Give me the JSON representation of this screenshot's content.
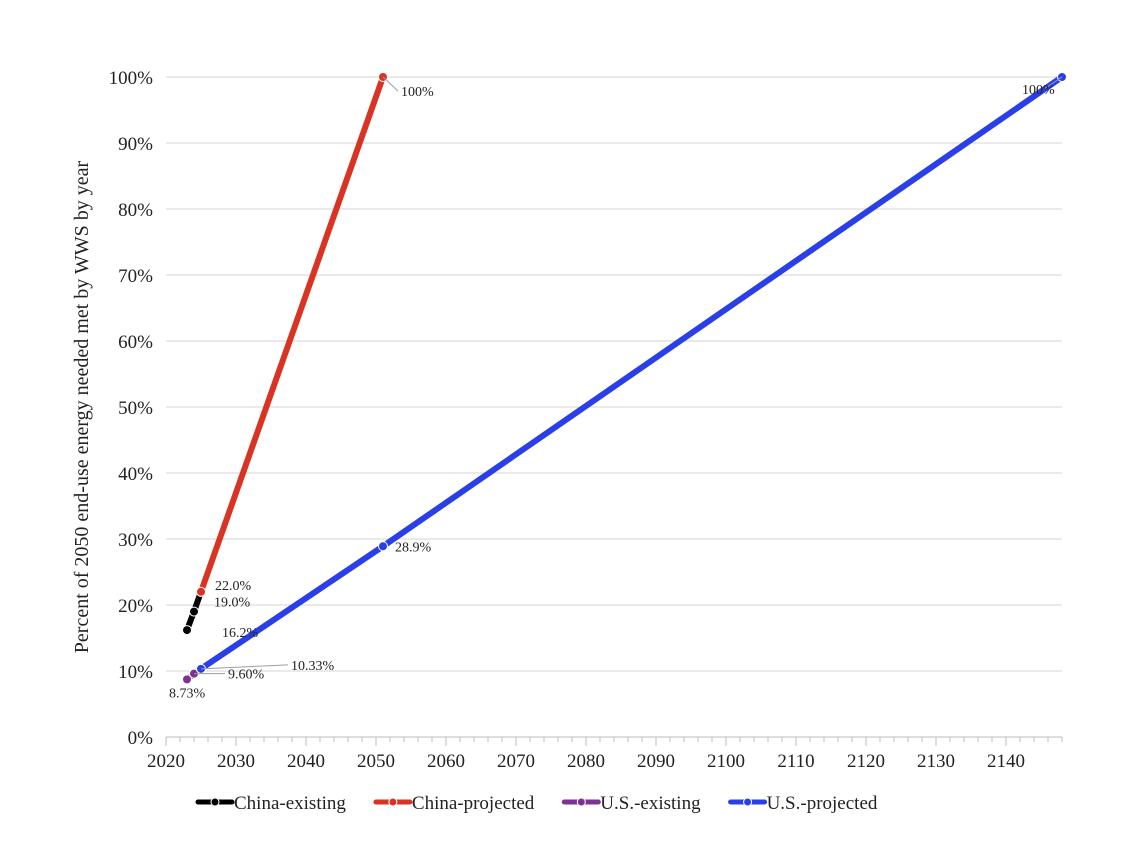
{
  "chart_data": {
    "type": "line",
    "title": "",
    "xlabel": "",
    "ylabel": "Percent of 2050 end-use energy needed met by WWS by year",
    "xlim": [
      2020,
      2148
    ],
    "ylim": [
      0,
      100
    ],
    "x_ticks": [
      2020,
      2030,
      2040,
      2050,
      2060,
      2070,
      2080,
      2090,
      2100,
      2110,
      2120,
      2130,
      2140
    ],
    "x_tick_labels": [
      "2020",
      "2030",
      "2040",
      "2050",
      "2060",
      "2070",
      "2080",
      "2090",
      "2100",
      "2110",
      "2120",
      "2130",
      "2140"
    ],
    "y_ticks": [
      0,
      10,
      20,
      30,
      40,
      50,
      60,
      70,
      80,
      90,
      100
    ],
    "y_tick_labels": [
      "0%",
      "10%",
      "20%",
      "30%",
      "40%",
      "50%",
      "60%",
      "70%",
      "80%",
      "90%",
      "100%"
    ],
    "grid": "horizontal",
    "legend_position": "bottom",
    "series": [
      {
        "name": "China-existing",
        "color": "#000000",
        "points": [
          {
            "x": 2023,
            "y": 16.2,
            "label": "16.2%"
          },
          {
            "x": 2024,
            "y": 19.0,
            "label": "19.0%"
          },
          {
            "x": 2025,
            "y": 22.0,
            "label": ""
          }
        ]
      },
      {
        "name": "China-projected",
        "color": "#d93323",
        "points": [
          {
            "x": 2025,
            "y": 22.0,
            "label": "22.0%"
          },
          {
            "x": 2051,
            "y": 100,
            "label": "100%"
          }
        ]
      },
      {
        "name": "U.S.-existing",
        "color": "#7b3294",
        "points": [
          {
            "x": 2023,
            "y": 8.73,
            "label": "8.73%"
          },
          {
            "x": 2024,
            "y": 9.6,
            "label": "9.60%"
          },
          {
            "x": 2025,
            "y": 10.33,
            "label": ""
          }
        ]
      },
      {
        "name": "U.S.-projected",
        "color": "#2b3fe8",
        "points": [
          {
            "x": 2025,
            "y": 10.33,
            "label": "10.33%"
          },
          {
            "x": 2051,
            "y": 28.9,
            "label": "28.9%"
          },
          {
            "x": 2148,
            "y": 100,
            "label": "100%"
          }
        ]
      }
    ]
  }
}
